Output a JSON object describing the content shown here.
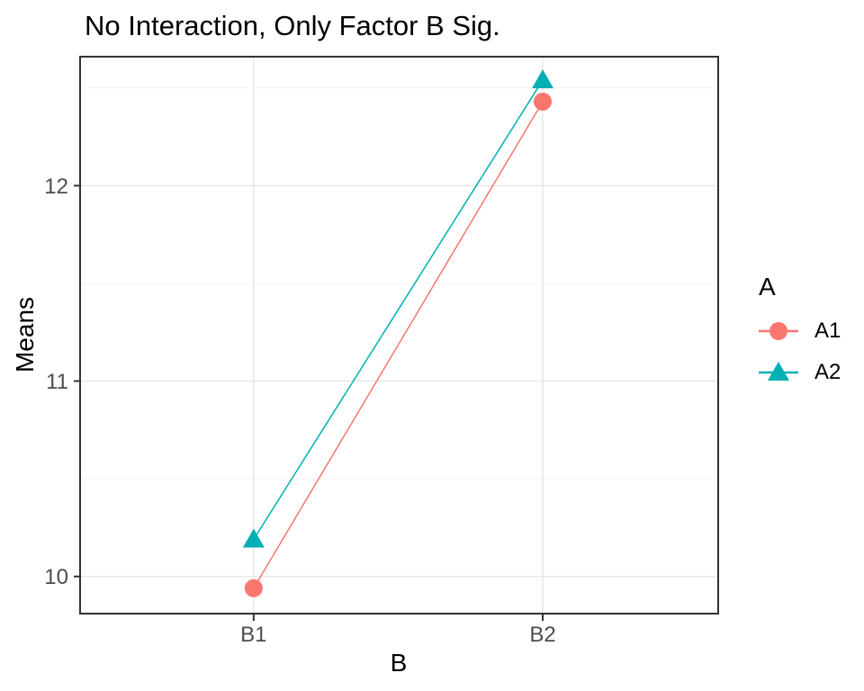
{
  "figure": {
    "background": "#FFFFFF"
  },
  "chart_data": {
    "type": "line",
    "title": "No Interaction, Only Factor B Sig.",
    "xlabel": "B",
    "ylabel": "Means",
    "categories": [
      "B1",
      "B2"
    ],
    "series": [
      {
        "name": "A1",
        "marker": "circle",
        "color": "#F8766D",
        "values": [
          9.94,
          12.43
        ]
      },
      {
        "name": "A2",
        "marker": "triangle",
        "color": "#00B0B5",
        "values": [
          10.19,
          12.54
        ]
      }
    ],
    "ylim": [
      9.81,
      12.66
    ],
    "yticks": [
      10,
      11,
      12
    ],
    "yticks_minor": [
      10.5,
      11.5,
      12.5
    ],
    "grid": true,
    "legend": {
      "title": "A",
      "position": "right"
    }
  },
  "style_colors": {
    "panel_border": "#333333",
    "tick_mark": "#333333",
    "tick_label": "#4D4D4D",
    "grid_major": "#E8E8E8",
    "grid_minor": "#F4F4F4",
    "title_text": "#000000"
  }
}
